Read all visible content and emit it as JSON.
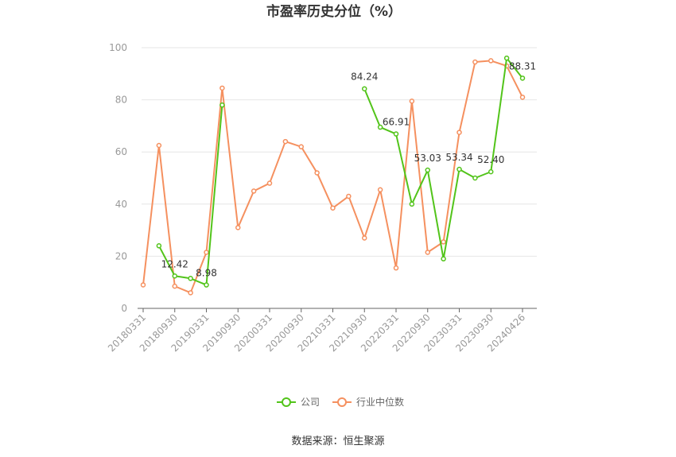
{
  "chart_data": {
    "type": "line",
    "title": "市盈率历史分位（%）",
    "xlabel": "",
    "ylabel": "",
    "ylim": [
      0,
      100
    ],
    "yticks": [
      0,
      20,
      40,
      60,
      80,
      100
    ],
    "grid": true,
    "legend_position": "bottom",
    "x": [
      "20180331",
      "20180630",
      "20180930",
      "20181231",
      "20190331",
      "20190630",
      "20190930",
      "20191231",
      "20200331",
      "20200630",
      "20200930",
      "20201231",
      "20210331",
      "20210630",
      "20210930",
      "20211231",
      "20220331",
      "20220630",
      "20220930",
      "20221231",
      "20230331",
      "20230630",
      "20230930",
      "20231231",
      "20240426"
    ],
    "x_tick_labels": [
      "20180331",
      "20180930",
      "20190331",
      "20190930",
      "20200331",
      "20200930",
      "20210331",
      "20210930",
      "20220331",
      "20220930",
      "20230331",
      "20230930",
      "20240426"
    ],
    "series": [
      {
        "name": "公司",
        "color": "#52c41a",
        "values": [
          null,
          24,
          12.42,
          11.5,
          8.98,
          78,
          null,
          null,
          null,
          null,
          null,
          null,
          null,
          null,
          84.24,
          69.5,
          66.91,
          40,
          53.03,
          19,
          53.34,
          50,
          52.4,
          96,
          88.31
        ],
        "labels": {
          "2": "12.42",
          "4": "8.98",
          "14": "84.24",
          "16": "66.91",
          "18": "53.03",
          "20": "53.34",
          "22": "52.40",
          "24": "88.31"
        }
      },
      {
        "name": "行业中位数",
        "color": "#f5905f",
        "values": [
          9,
          62.5,
          8.5,
          6,
          21.5,
          84.5,
          31,
          45,
          48,
          64,
          62,
          52,
          38.5,
          43,
          27,
          45.5,
          15.5,
          79.5,
          21.5,
          25.5,
          67.5,
          94.5,
          95,
          93,
          81
        ],
        "labels": {}
      }
    ]
  },
  "footer": {
    "source": "数据来源：恒生聚源"
  }
}
